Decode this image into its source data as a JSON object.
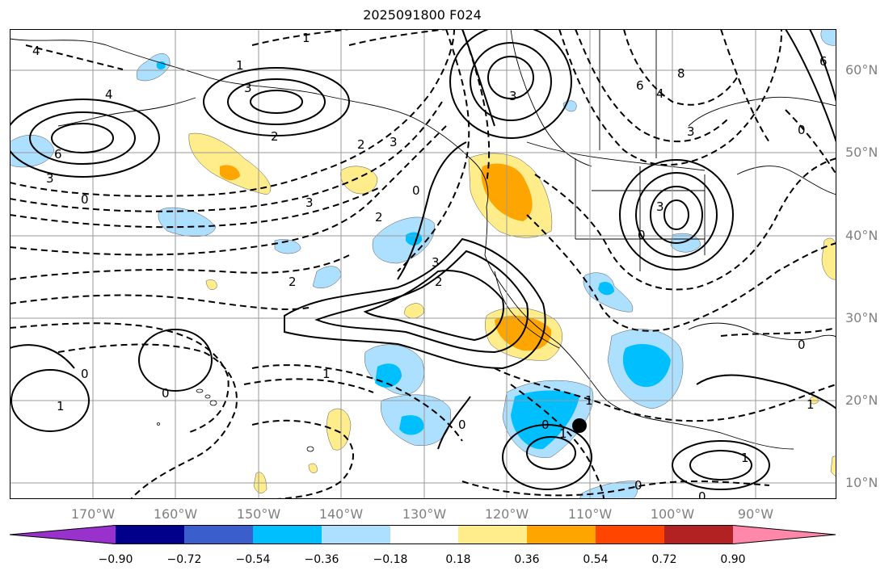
{
  "title": "2025091800 F024",
  "lat_labels": [
    "60°N",
    "50°N",
    "40°N",
    "30°N",
    "20°N",
    "10°N"
  ],
  "lon_labels": [
    "170°W",
    "160°W",
    "150°W",
    "140°W",
    "130°W",
    "120°W",
    "110°W",
    "100°W",
    "90°W"
  ],
  "contour_labels": [
    "1",
    "4",
    "1",
    "3",
    "4",
    "3",
    "6",
    "3",
    "0",
    "2",
    "3",
    "2",
    "2",
    "3",
    "2",
    "2",
    "0",
    "6",
    "4",
    "8",
    "3",
    "0",
    "3",
    "0",
    "3",
    "1",
    "0",
    "0",
    "1",
    "1",
    "0",
    "0",
    "1",
    "1",
    "0",
    "0",
    "1",
    "0",
    "6"
  ],
  "colorbar": {
    "ticks": [
      "−0.90",
      "−0.72",
      "−0.54",
      "−0.36",
      "−0.18",
      "0.18",
      "0.36",
      "0.54",
      "0.72",
      "0.90"
    ],
    "colors": [
      "#9932CC",
      "#00008B",
      "#3A5FCD",
      "#00BFFF",
      "#ADDFFF",
      "#FFFFFF",
      "#FFEC8B",
      "#FFA500",
      "#FF4500",
      "#B22222",
      "#FF88AA"
    ]
  },
  "marker": {
    "name": "storm-center"
  }
}
